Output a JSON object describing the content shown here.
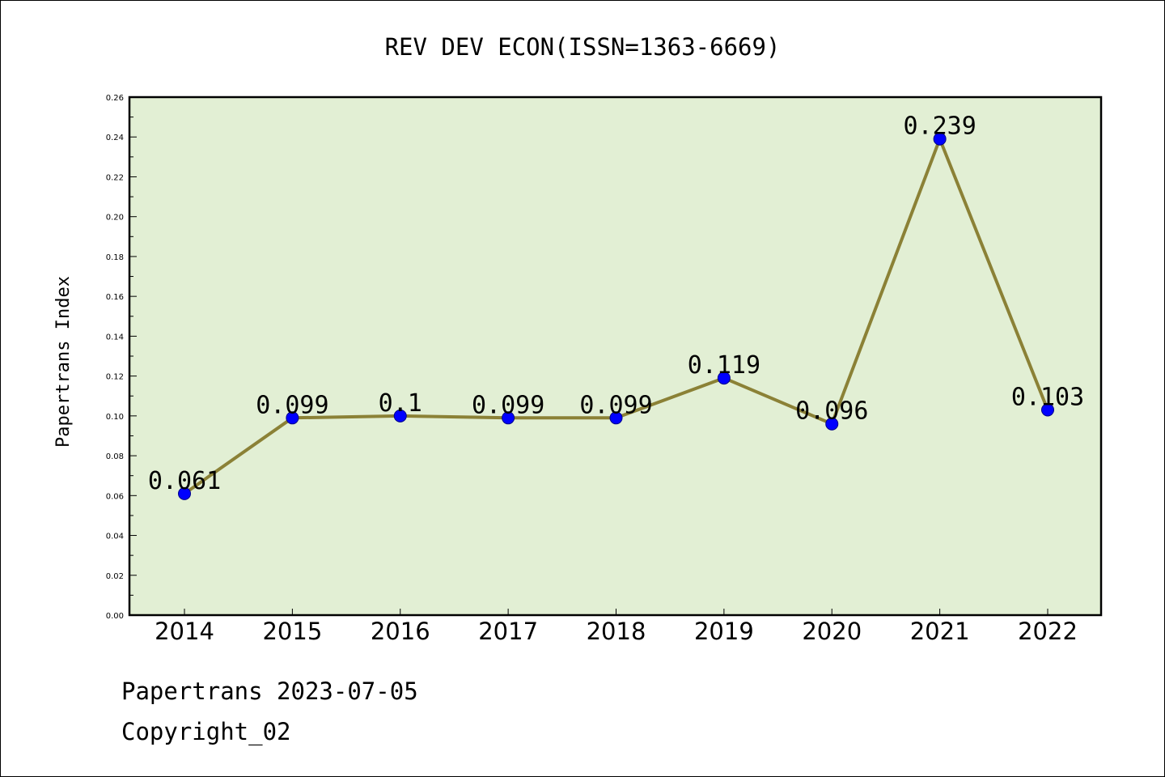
{
  "chart_data": {
    "type": "line",
    "title": "REV DEV ECON(ISSN=1363-6669)",
    "ylabel": "Papertrans Index",
    "xlabel": "",
    "categories": [
      "2014",
      "2015",
      "2016",
      "2017",
      "2018",
      "2019",
      "2020",
      "2021",
      "2022"
    ],
    "series": [
      {
        "values": [
          0.061,
          0.099,
          0.1,
          0.099,
          0.099,
          0.119,
          0.096,
          0.239,
          0.103
        ],
        "labels": [
          "0.061",
          "0.099",
          "0.1",
          "0.099",
          "0.099",
          "0.119",
          "0.096",
          "0.239",
          "0.103"
        ]
      }
    ],
    "ylim": [
      0,
      0.26
    ],
    "yticks": [
      "0.00",
      "0.02",
      "0.04",
      "0.06",
      "0.08",
      "0.10",
      "0.12",
      "0.14",
      "0.16",
      "0.18",
      "0.20",
      "0.22",
      "0.24",
      "0.26"
    ],
    "grid": false,
    "colors": {
      "plot_background": "#e2efd4",
      "line": "#8b8136",
      "marker": "#0000ff"
    }
  },
  "footer": {
    "line1": "Papertrans 2023-07-05",
    "line2": "Copyright_02"
  }
}
